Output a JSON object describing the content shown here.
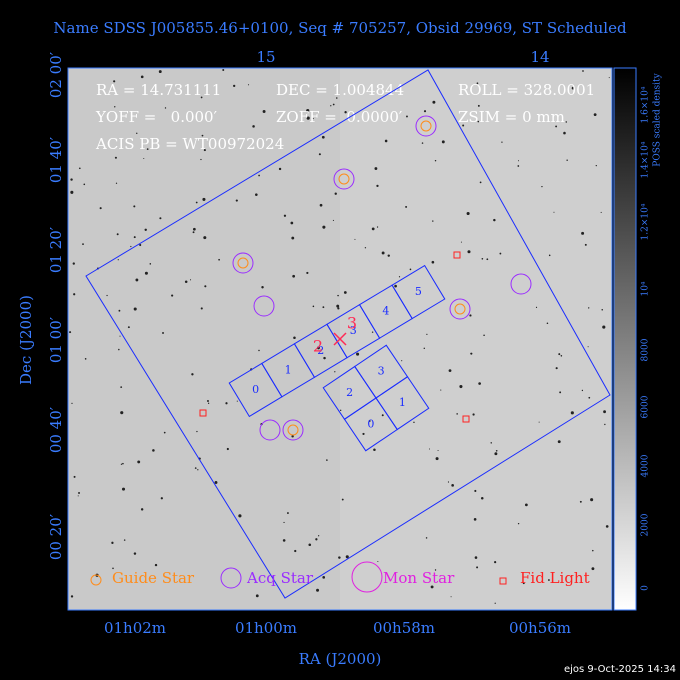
{
  "title": "Name SDSS J005855.46+0100, Seq # 705257, Obsid 29969, ST Scheduled",
  "info": [
    "RA = 14.731111",
    "DEC = 1.004844",
    "ROLL = 328.0001",
    "YOFF =   0.000′",
    "ZOFF =  0.0000′",
    "ZSIM = 0 mm",
    "ACIS PB = WT00972024"
  ],
  "axes": {
    "x_label": "RA (J2000)",
    "y_label": "Dec (J2000)",
    "x_ticks": [
      "01h02m",
      "01h00m",
      "00h58m",
      "00h56m"
    ],
    "y_ticks": [
      "00 20′",
      "00 40′",
      "01 00′",
      "01 20′",
      "01 40′",
      "02 00′"
    ],
    "top_ticks": [
      "15",
      "14"
    ]
  },
  "colorbar": {
    "label": "POSS scaled density",
    "ticks": [
      "0",
      "2000",
      "4000",
      "6000",
      "8000",
      "10⁴",
      "1.2×10⁴",
      "1.4×10⁴",
      "1.6×10⁴"
    ]
  },
  "chips": {
    "acis_s": [
      "0",
      "1",
      "2",
      "3",
      "4",
      "5"
    ],
    "acis_i": [
      "2",
      "3",
      "0",
      "1"
    ]
  },
  "markers": [
    "2",
    "3"
  ],
  "legend": [
    "Guide Star",
    "Acq Star",
    "Mon Star",
    "Fid Light"
  ],
  "footer": "ejos  9-Oct-2025 14:34"
}
